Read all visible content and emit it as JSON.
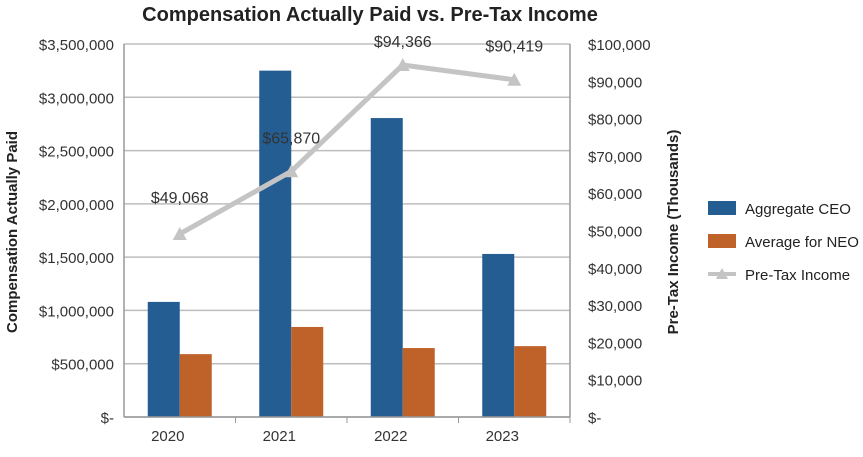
{
  "chart_data": {
    "type": "bar",
    "title": "Compensation Actually Paid vs. Pre-Tax Income",
    "categories": [
      "2020",
      "2021",
      "2022",
      "2023"
    ],
    "ylabel": "Compensation Actually Paid",
    "y2label": "Pre-Tax Income (Thousands)",
    "ylim": [
      0,
      3500000
    ],
    "y2lim": [
      0,
      100000
    ],
    "yticks": [
      "$-",
      "$500,000",
      "$1,000,000",
      "$1,500,000",
      "$2,000,000",
      "$2,500,000",
      "$3,000,000",
      "$3,500,000"
    ],
    "y2ticks": [
      "$-",
      "$10,000",
      "$20,000",
      "$30,000",
      "$40,000",
      "$50,000",
      "$60,000",
      "$70,000",
      "$80,000",
      "$90,000",
      "$100,000"
    ],
    "grid": true,
    "legend_position": "right",
    "series": [
      {
        "name": "Aggregate CEO",
        "type": "bar",
        "axis": "left",
        "color": "#235d91",
        "values": [
          1080000,
          3250000,
          2805000,
          1530000
        ]
      },
      {
        "name": "Average for NEO",
        "type": "bar",
        "axis": "left",
        "color": "#bf622a",
        "values": [
          590000,
          845000,
          647000,
          665000
        ]
      },
      {
        "name": "Pre-Tax Income",
        "type": "line",
        "axis": "right",
        "color": "#c4c4c4",
        "values": [
          49068,
          65870,
          94366,
          90419
        ],
        "labels": [
          "$49,068",
          "$65,870",
          "$94,366",
          "$90,419"
        ]
      }
    ]
  }
}
